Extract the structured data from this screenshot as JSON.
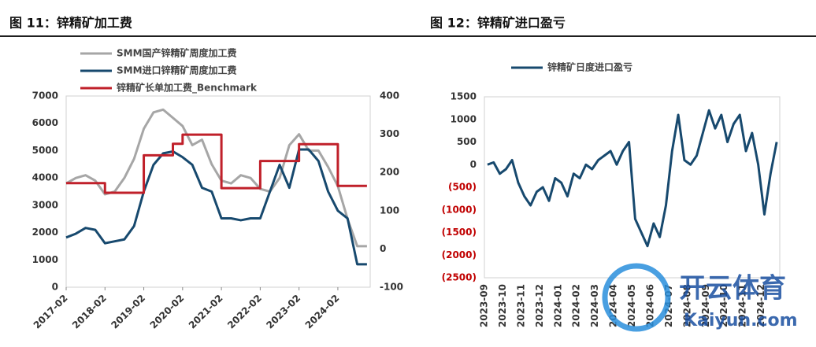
{
  "chart_data": [
    {
      "type": "line",
      "title": "图 11：锌精矿加工费",
      "legend": "top",
      "grid": false,
      "x": [
        "2017-02",
        "2017-05",
        "2017-08",
        "2017-11",
        "2018-02",
        "2018-05",
        "2018-08",
        "2018-11",
        "2019-02",
        "2019-05",
        "2019-08",
        "2019-11",
        "2020-02",
        "2020-05",
        "2020-08",
        "2020-11",
        "2021-02",
        "2021-05",
        "2021-08",
        "2021-11",
        "2022-02",
        "2022-05",
        "2022-08",
        "2022-11",
        "2023-02",
        "2023-05",
        "2023-08",
        "2023-11",
        "2024-02",
        "2024-05",
        "2024-08",
        "2024-11"
      ],
      "xlim": [
        "2017-02",
        "2024-12"
      ],
      "xticks": [
        "2017-02",
        "2018-02",
        "2019-02",
        "2020-02",
        "2021-02",
        "2022-02",
        "2023-02",
        "2024-02"
      ],
      "ylim": [
        0,
        7000
      ],
      "yticks": [
        0,
        1000,
        2000,
        3000,
        4000,
        5000,
        6000,
        7000
      ],
      "y2lim": [
        -100,
        400
      ],
      "y2ticks": [
        -100,
        0,
        100,
        200,
        300,
        400
      ],
      "series": [
        {
          "name": "SMM国产锌精矿周度加工费",
          "color": "#a6a6a6",
          "values": [
            3800,
            4000,
            4100,
            3900,
            3400,
            3500,
            4000,
            4700,
            5800,
            6400,
            6500,
            6200,
            5900,
            5200,
            5400,
            4500,
            3900,
            3800,
            4100,
            4000,
            3600,
            3500,
            4000,
            5200,
            5600,
            5000,
            5000,
            4400,
            3700,
            2500,
            1500,
            1500
          ]
        },
        {
          "name": "SMM进口锌精矿周度加工费",
          "color": "#17496e",
          "axis": "y2",
          "values": [
            30,
            40,
            55,
            50,
            15,
            20,
            25,
            60,
            150,
            220,
            250,
            255,
            240,
            220,
            160,
            150,
            80,
            80,
            75,
            80,
            80,
            150,
            220,
            160,
            260,
            260,
            230,
            150,
            100,
            80,
            -40,
            -40
          ]
        },
        {
          "name": "锌精矿长单加工费_Benchmark",
          "color": "#c0202a",
          "axis": "y2",
          "step": true,
          "values": [
            172,
            172,
            172,
            172,
            147,
            147,
            147,
            147,
            245,
            245,
            245,
            275,
            299,
            299,
            299,
            299,
            159,
            159,
            159,
            159,
            230,
            230,
            230,
            230,
            274,
            274,
            274,
            274,
            165,
            165,
            165,
            165
          ]
        }
      ]
    },
    {
      "type": "line",
      "title": "图 12：锌精矿进口盈亏",
      "legend": "top",
      "grid": false,
      "negative_tick_color": "#c00000",
      "categories": [
        "2023-09",
        null,
        null,
        "2023-10",
        null,
        null,
        "2023-11",
        null,
        null,
        "2023-12",
        null,
        null,
        "2024-01",
        null,
        null,
        "2024-02",
        null,
        null,
        "2024-03",
        null,
        null,
        "2024-04",
        null,
        null,
        "2024-05",
        null,
        null,
        "2024-06",
        null,
        null,
        "2024-07",
        null,
        null,
        "2024-08",
        null,
        null,
        "2024-09",
        null,
        null,
        "2024-10",
        null,
        null,
        "2024-11",
        null,
        null,
        "2024-12",
        null,
        null
      ],
      "ylim": [
        -2500,
        1500
      ],
      "yticks": [
        {
          "value": -2500,
          "label": "(2500)"
        },
        {
          "value": -2000,
          "label": "(2000)"
        },
        {
          "value": -1500,
          "label": "(1500)"
        },
        {
          "value": -1000,
          "label": "(1000)"
        },
        {
          "value": -500,
          "label": "(500)"
        },
        0,
        500,
        1000,
        1500
      ],
      "series": [
        {
          "name": "锌精矿日度进口盈亏",
          "color": "#17496e",
          "values": [
            0,
            50,
            -200,
            -100,
            100,
            -400,
            -700,
            -900,
            -600,
            -500,
            -800,
            -300,
            -400,
            -700,
            -200,
            -300,
            0,
            -100,
            100,
            200,
            300,
            0,
            300,
            500,
            -1200,
            -1500,
            -1800,
            -1300,
            -1600,
            -900,
            300,
            1100,
            100,
            0,
            200,
            700,
            1200,
            800,
            1100,
            500,
            900,
            1100,
            300,
            700,
            0,
            -1100,
            -200,
            500
          ]
        }
      ]
    }
  ],
  "watermark": {
    "brand": "开云体育",
    "site": "Kaiyun.com"
  }
}
